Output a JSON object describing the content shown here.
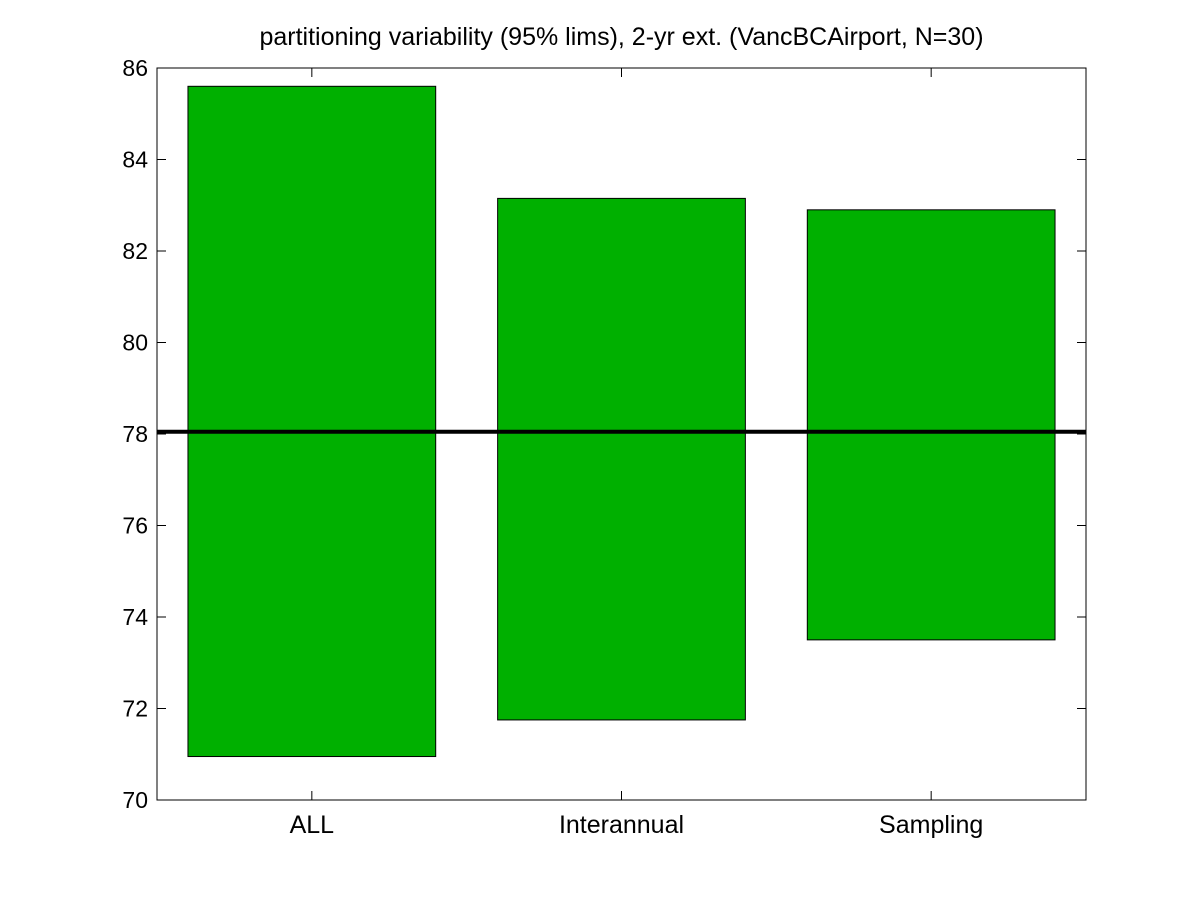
{
  "chart_data": {
    "type": "bar",
    "title": "partitioning variability (95% lims), 2-yr ext. (VancBCAirport, N=30)",
    "xlabel": "",
    "ylabel": "",
    "ylim": [
      70,
      86
    ],
    "yticks": [
      70,
      72,
      74,
      76,
      78,
      80,
      82,
      84,
      86
    ],
    "categories": [
      "ALL",
      "Interannual",
      "Sampling"
    ],
    "series": [
      {
        "lower": [
          70.95,
          71.75,
          73.5
        ],
        "upper": [
          85.6,
          83.15,
          82.9
        ]
      }
    ],
    "reference_line": 78.05,
    "bar_color": "#00b000",
    "grid": false,
    "legend": "none"
  }
}
